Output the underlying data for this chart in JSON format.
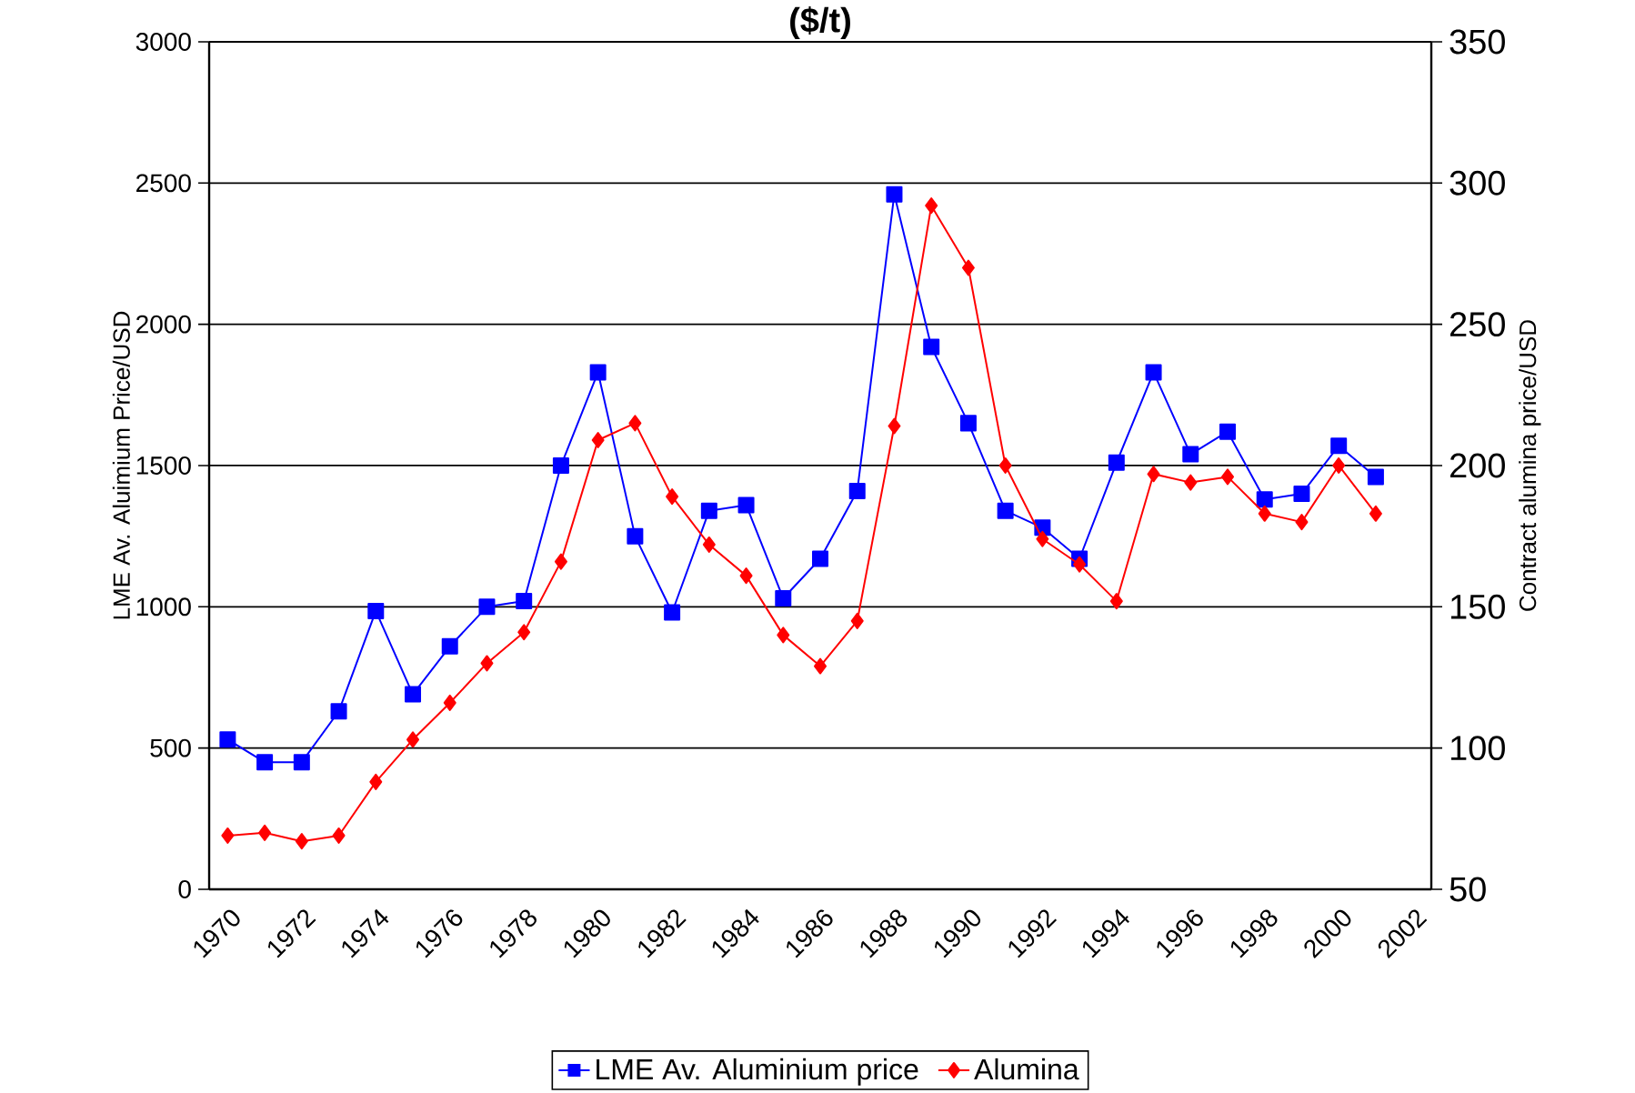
{
  "chart_data": {
    "type": "line",
    "title": "($/t)",
    "ylabel": "LME Av. Aluimium Price/USD",
    "y2label": "Contract alumina price/USD",
    "categories": [
      "1970",
      null,
      "1972",
      null,
      "1974",
      null,
      "1976",
      null,
      "1978",
      null,
      "1980",
      null,
      "1982",
      null,
      "1984",
      null,
      "1986",
      null,
      "1988",
      null,
      "1990",
      null,
      "1992",
      null,
      "1994",
      null,
      "1996",
      null,
      "1998",
      null,
      "2000",
      null,
      "2002"
    ],
    "series": [
      {
        "name": "LME Av. Aluminium price",
        "color": "#0000ff",
        "marker": "square",
        "values": [
          530,
          450,
          450,
          630,
          985,
          690,
          860,
          1000,
          1020,
          1500,
          1830,
          1250,
          980,
          1340,
          1360,
          1030,
          1170,
          1410,
          2460,
          1920,
          1650,
          1340,
          1280,
          1170,
          1510,
          1830,
          1540,
          1620,
          1380,
          1400,
          1570,
          1460,
          null
        ]
      },
      {
        "name": "Alumina",
        "color": "#ff0000",
        "marker": "diamond",
        "axis": "y2",
        "values": [
          69,
          70,
          67,
          69,
          88,
          103,
          116,
          130,
          141,
          166,
          209,
          215,
          189,
          172,
          161,
          140,
          129,
          145,
          214,
          292,
          270,
          200,
          174,
          165,
          152,
          197,
          194,
          196,
          183,
          180,
          200,
          183,
          null
        ]
      }
    ],
    "ylim": [
      0,
      3000
    ],
    "yticks": [
      0,
      500,
      1000,
      1500,
      2000,
      2500,
      3000
    ],
    "y2lim": [
      50,
      350
    ],
    "y2ticks": [
      50,
      100,
      150,
      200,
      250,
      300,
      350
    ],
    "grid": "y",
    "legend": "bottom",
    "line_style": "solid"
  }
}
